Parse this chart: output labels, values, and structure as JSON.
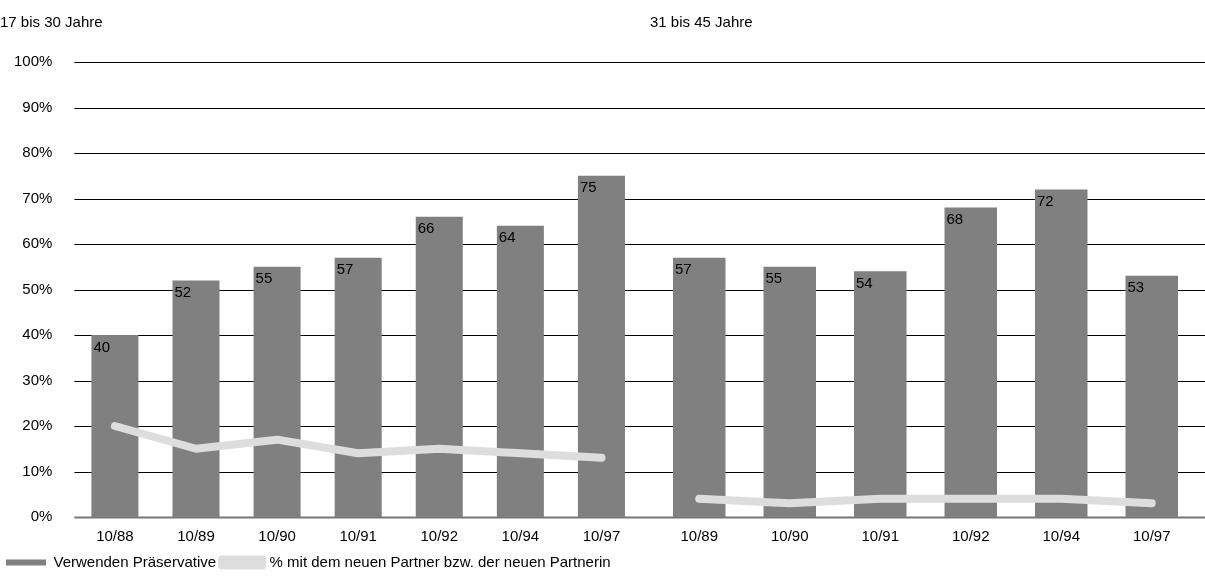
{
  "chart_data": [
    {
      "type": "bar",
      "title": "17 bis 30 Jahre",
      "categories": [
        "10/88",
        "10/89",
        "10/90",
        "10/91",
        "10/92",
        "10/94",
        "10/97"
      ],
      "series": [
        {
          "name": "Verwenden Präservative",
          "color": "#808080",
          "values": [
            40,
            52,
            55,
            57,
            66,
            64,
            75
          ],
          "value_labels": [
            "40",
            "52",
            "55",
            "57",
            "66",
            "64",
            "75"
          ]
        },
        {
          "name": "% mit dem neuen Partner bzw. der neuen Partnerin",
          "type": "line",
          "color": "#dddddd",
          "values": [
            20,
            15,
            17,
            14,
            15,
            14,
            13
          ]
        }
      ],
      "ylim": [
        0,
        100
      ],
      "yticks": [
        {
          "value": 0,
          "label": "0%"
        },
        {
          "value": 10,
          "label": "10%"
        },
        {
          "value": 20,
          "label": "20%"
        },
        {
          "value": 30,
          "label": "30%"
        },
        {
          "value": 40,
          "label": "40%"
        },
        {
          "value": 50,
          "label": "50%"
        },
        {
          "value": 60,
          "label": "60%"
        },
        {
          "value": 70,
          "label": "70%"
        },
        {
          "value": 80,
          "label": "80%"
        },
        {
          "value": 90,
          "label": "90%"
        },
        {
          "value": 100,
          "label": "100%"
        }
      ],
      "grid": "y",
      "legend": "bottom left",
      "marker": "none"
    },
    {
      "type": "bar",
      "title": "31 bis 45 Jahre",
      "categories": [
        "10/89",
        "10/90",
        "10/91",
        "10/92",
        "10/94",
        "10/97"
      ],
      "series": [
        {
          "color": "#808080",
          "values": [
            57,
            55,
            54,
            68,
            72,
            53
          ],
          "value_labels": [
            "57",
            "55",
            "54",
            "68",
            "72",
            "53"
          ]
        },
        {
          "type": "line",
          "color": "#dddddd",
          "values": [
            4,
            3,
            4,
            4,
            4,
            3
          ]
        }
      ],
      "ylim": [
        0,
        100
      ],
      "yticks": [
        0,
        10,
        20,
        30,
        40,
        50,
        60,
        70,
        80,
        90,
        100
      ],
      "tick_labels": "x",
      "grid": "y",
      "marker": "none"
    }
  ]
}
